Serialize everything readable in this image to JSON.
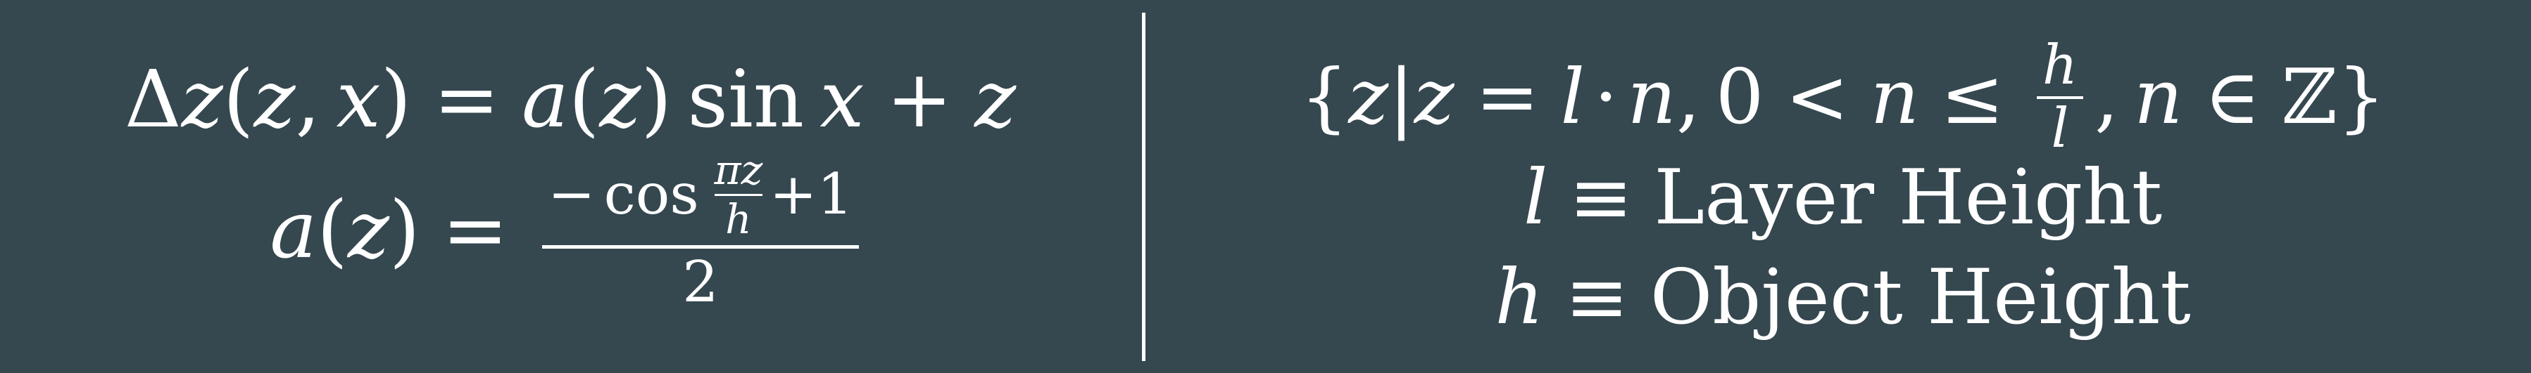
{
  "left": {
    "line1": {
      "delta": "Δ",
      "z1": "z",
      "open1": "(",
      "z2": "z",
      "comma": ",",
      "x1": "x",
      "close1": ")",
      "eq": "=",
      "a": "a",
      "open2": "(",
      "z3": "z",
      "close2": ")",
      "sin": "sin",
      "x2": "x",
      "plus": "+",
      "z4": "z"
    },
    "line2": {
      "a": "a",
      "open": "(",
      "z": "z",
      "close": ")",
      "eq": "=",
      "num_minus": "−",
      "num_cos": "cos",
      "pi_z": "πz",
      "h": "h",
      "plus_one": "+1",
      "den": "2"
    }
  },
  "right": {
    "set": {
      "lbrace": "{",
      "z1": "z",
      "pipe": "|",
      "z2": "z",
      "eq": "=",
      "l": "l",
      "cdot": "·",
      "n1": "n",
      "comma1": ",",
      "zero": "0",
      "lt": "<",
      "n2": "n",
      "le": "≤",
      "frac_num": "h",
      "frac_den": "l",
      "comma2": ",",
      "n3": "n",
      "in": "∈",
      "ints": "ℤ",
      "rbrace": "}"
    },
    "def_l": {
      "symbol": "l",
      "equiv": "≡",
      "text": "Layer Height"
    },
    "def_h": {
      "symbol": "h",
      "equiv": "≡",
      "text": "Object Height"
    }
  }
}
